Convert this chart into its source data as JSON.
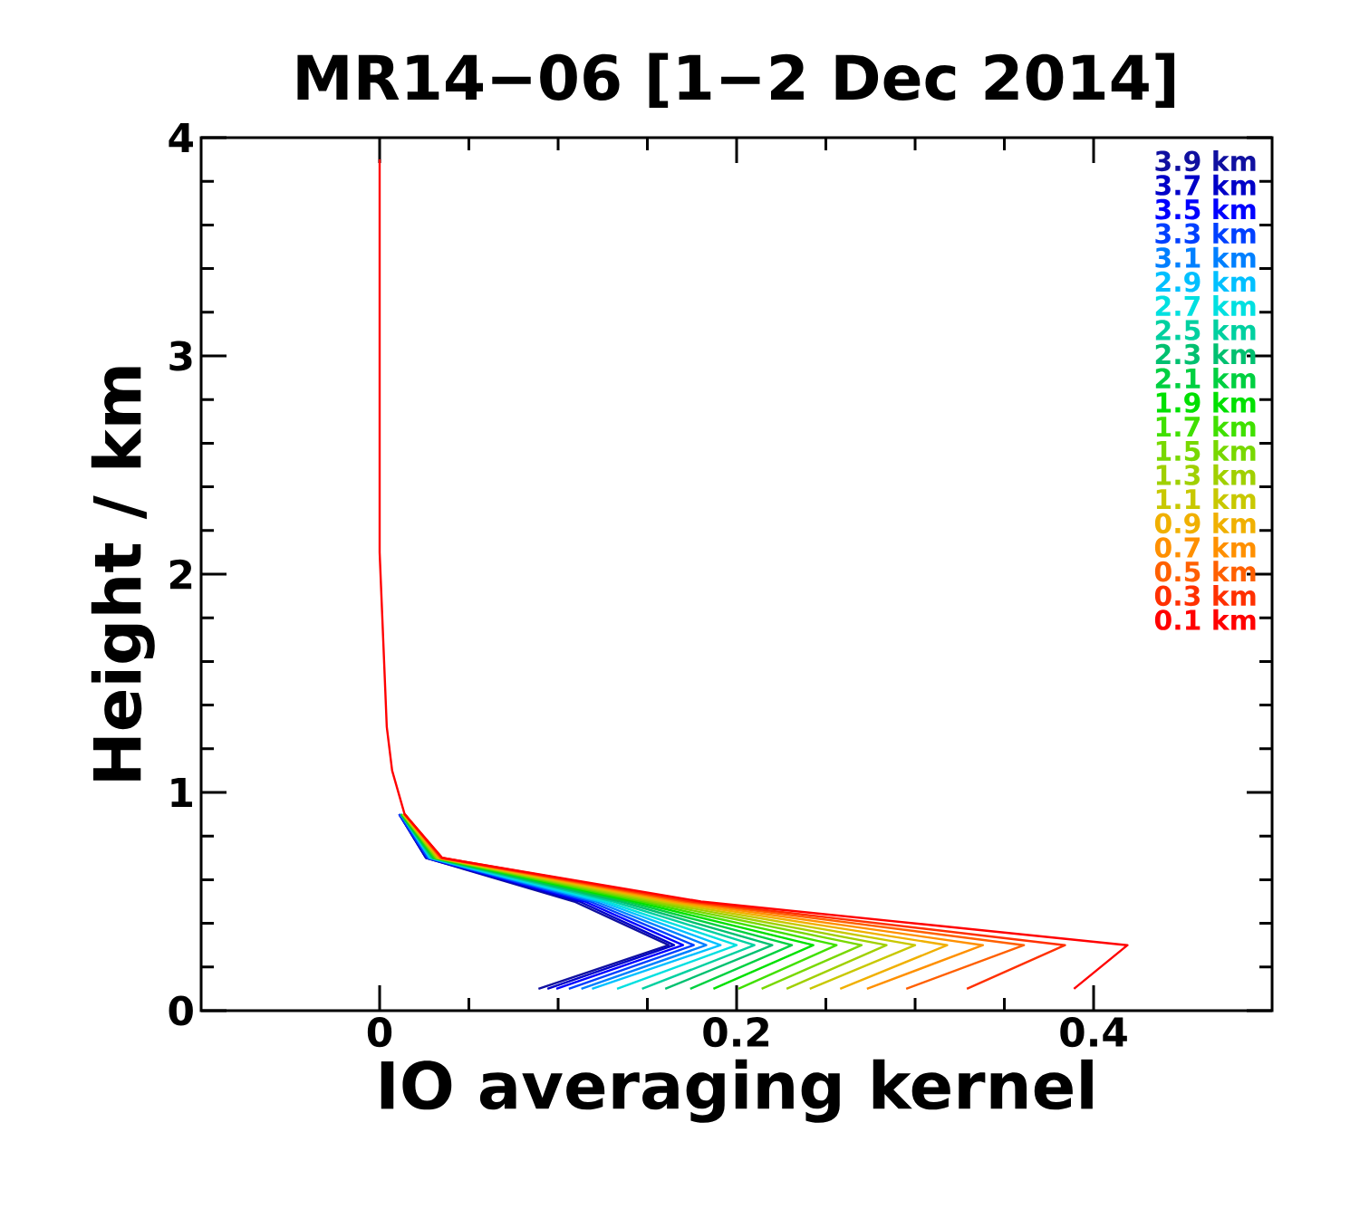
{
  "chart_data": {
    "type": "line",
    "title": "MR14−06 [1−2 Dec 2014]",
    "xlabel": "IO averaging kernel",
    "ylabel": "Height / km",
    "xlim": [
      -0.1,
      0.5
    ],
    "ylim": [
      0,
      4
    ],
    "xticks": [
      0,
      0.2,
      0.4
    ],
    "yticks": [
      0,
      1,
      2,
      3,
      4
    ],
    "grid": false,
    "legend": "top right",
    "marker": "none",
    "line_style": "solid",
    "series": [
      {
        "name": "3.9 km",
        "color": "#1010a0",
        "x": [
          0.089,
          0.162,
          0.109,
          0.026,
          0.011
        ],
        "values": [
          0.1,
          0.3,
          0.5,
          0.7,
          0.9
        ]
      },
      {
        "name": "3.7 km",
        "color": "#0000c8",
        "x": [
          0.094,
          0.165,
          0.112,
          0.026,
          0.011
        ],
        "values": [
          0.1,
          0.3,
          0.5,
          0.7,
          0.9
        ]
      },
      {
        "name": "3.5 km",
        "color": "#0000ff",
        "x": [
          0.099,
          0.17,
          0.115,
          0.027,
          0.011
        ],
        "values": [
          0.1,
          0.3,
          0.5,
          0.7,
          0.9
        ]
      },
      {
        "name": "3.3 km",
        "color": "#0040ff",
        "x": [
          0.106,
          0.176,
          0.118,
          0.027,
          0.011
        ],
        "values": [
          0.1,
          0.3,
          0.5,
          0.7,
          0.9
        ]
      },
      {
        "name": "3.1 km",
        "color": "#0080ff",
        "x": [
          0.113,
          0.183,
          0.121,
          0.028,
          0.012
        ],
        "values": [
          0.1,
          0.3,
          0.5,
          0.7,
          0.9
        ]
      },
      {
        "name": "2.9 km",
        "color": "#00c0ff",
        "x": [
          0.119,
          0.191,
          0.124,
          0.028,
          0.012
        ],
        "values": [
          0.1,
          0.3,
          0.5,
          0.7,
          0.9
        ]
      },
      {
        "name": "2.7 km",
        "color": "#00e0e0",
        "x": [
          0.133,
          0.2,
          0.127,
          0.029,
          0.012
        ],
        "values": [
          0.1,
          0.3,
          0.5,
          0.7,
          0.9
        ]
      },
      {
        "name": "2.5 km",
        "color": "#00d0a0",
        "x": [
          0.147,
          0.21,
          0.131,
          0.029,
          0.012
        ],
        "values": [
          0.1,
          0.3,
          0.5,
          0.7,
          0.9
        ]
      },
      {
        "name": "2.3 km",
        "color": "#00c070",
        "x": [
          0.16,
          0.22,
          0.135,
          0.03,
          0.012
        ],
        "values": [
          0.1,
          0.3,
          0.5,
          0.7,
          0.9
        ]
      },
      {
        "name": "2.1 km",
        "color": "#00d040",
        "x": [
          0.174,
          0.231,
          0.139,
          0.03,
          0.012
        ],
        "values": [
          0.1,
          0.3,
          0.5,
          0.7,
          0.9
        ]
      },
      {
        "name": "1.9 km",
        "color": "#00e000",
        "x": [
          0.187,
          0.243,
          0.143,
          0.031,
          0.013
        ],
        "values": [
          0.1,
          0.3,
          0.5,
          0.7,
          0.9
        ]
      },
      {
        "name": "1.7 km",
        "color": "#40e000",
        "x": [
          0.201,
          0.256,
          0.147,
          0.031,
          0.013
        ],
        "values": [
          0.1,
          0.3,
          0.5,
          0.7,
          0.9
        ]
      },
      {
        "name": "1.5 km",
        "color": "#78d800",
        "x": [
          0.214,
          0.27,
          0.151,
          0.032,
          0.013
        ],
        "values": [
          0.1,
          0.3,
          0.5,
          0.7,
          0.9
        ]
      },
      {
        "name": "1.3 km",
        "color": "#a0d000",
        "x": [
          0.228,
          0.284,
          0.155,
          0.032,
          0.013
        ],
        "values": [
          0.1,
          0.3,
          0.5,
          0.7,
          0.9
        ]
      },
      {
        "name": "1.1 km",
        "color": "#c8c800",
        "x": [
          0.241,
          0.3,
          0.159,
          0.033,
          0.013
        ],
        "values": [
          0.1,
          0.3,
          0.5,
          0.7,
          0.9
        ]
      },
      {
        "name": "0.9 km",
        "color": "#f0b000",
        "x": [
          0.258,
          0.318,
          0.163,
          0.033,
          0.014
        ],
        "values": [
          0.1,
          0.3,
          0.5,
          0.7,
          0.9
        ]
      },
      {
        "name": "0.7 km",
        "color": "#ff9000",
        "x": [
          0.273,
          0.338,
          0.167,
          0.034,
          0.014
        ],
        "values": [
          0.1,
          0.3,
          0.5,
          0.7,
          0.9
        ]
      },
      {
        "name": "0.5 km",
        "color": "#ff6000",
        "x": [
          0.295,
          0.361,
          0.171,
          0.034,
          0.014
        ],
        "values": [
          0.1,
          0.3,
          0.5,
          0.7,
          0.9
        ]
      },
      {
        "name": "0.3 km",
        "color": "#ff3000",
        "x": [
          0.329,
          0.384,
          0.175,
          0.035,
          0.014
        ],
        "values": [
          0.1,
          0.3,
          0.5,
          0.7,
          0.9
        ]
      },
      {
        "name": "0.1 km",
        "color": "#ff0000",
        "x": [
          0.389,
          0.419,
          0.18,
          0.035,
          0.014,
          0.007,
          0.004,
          0.003,
          0.002,
          0.001,
          0,
          0,
          0,
          0,
          0,
          0,
          0,
          0,
          0,
          0
        ],
        "values": [
          0.1,
          0.3,
          0.5,
          0.7,
          0.9,
          1.1,
          1.3,
          1.5,
          1.7,
          1.9,
          2.1,
          2.3,
          2.5,
          2.7,
          2.9,
          3.1,
          3.3,
          3.5,
          3.7,
          3.9
        ]
      }
    ]
  }
}
